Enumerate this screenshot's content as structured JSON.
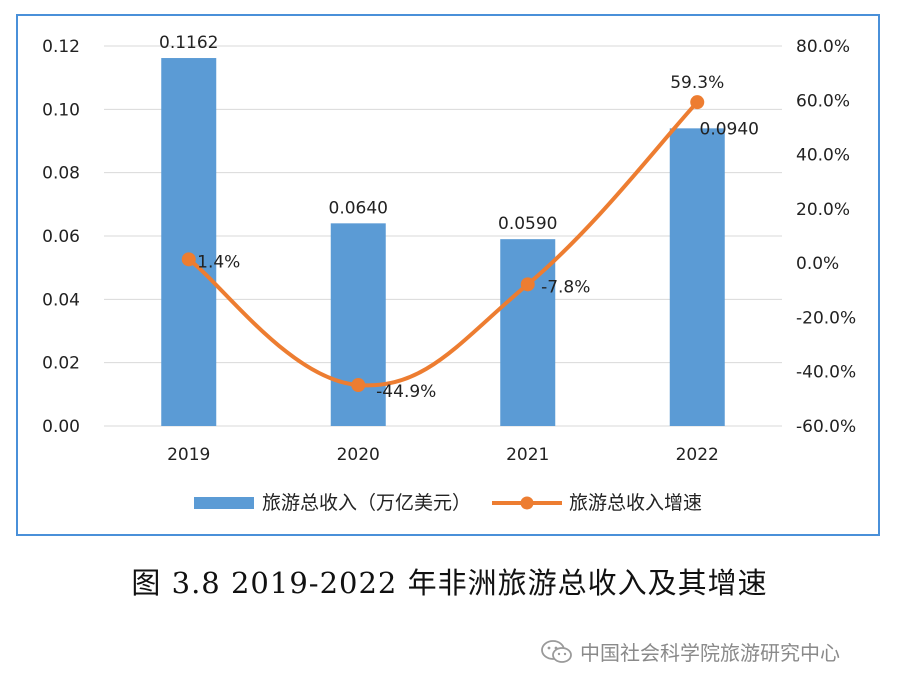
{
  "chart_data": {
    "type": "bar+line",
    "categories": [
      "2019",
      "2020",
      "2021",
      "2022"
    ],
    "series": [
      {
        "name": "旅游总收入（万亿美元）",
        "type": "bar",
        "axis": "left",
        "values": [
          0.1162,
          0.064,
          0.059,
          0.094
        ],
        "labels": [
          "0.1162",
          "0.0640",
          "0.0590",
          "0.0940"
        ],
        "color": "#5b9bd5"
      },
      {
        "name": "旅游总收入增速",
        "type": "line",
        "axis": "right",
        "values": [
          1.4,
          -44.9,
          -7.8,
          59.3
        ],
        "labels": [
          "1.4%",
          "-44.9%",
          "-7.8%",
          "59.3%"
        ],
        "color": "#ed7d31"
      }
    ],
    "left_axis": {
      "ylim": [
        0,
        0.12
      ],
      "ticks": [
        "0.00",
        "0.02",
        "0.04",
        "0.06",
        "0.08",
        "0.10",
        "0.12"
      ]
    },
    "right_axis": {
      "ylim": [
        -60,
        80
      ],
      "ticks": [
        "-60.0%",
        "-40.0%",
        "-20.0%",
        "0.0%",
        "20.0%",
        "40.0%",
        "60.0%",
        "80.0%"
      ]
    },
    "grid": true,
    "legend_position": "bottom"
  },
  "caption": "图 3.8 2019-2022 年非洲旅游总收入及其增速",
  "watermark": {
    "text": "中国社会科学院旅游研究中心",
    "icon": "wechat-icon"
  }
}
